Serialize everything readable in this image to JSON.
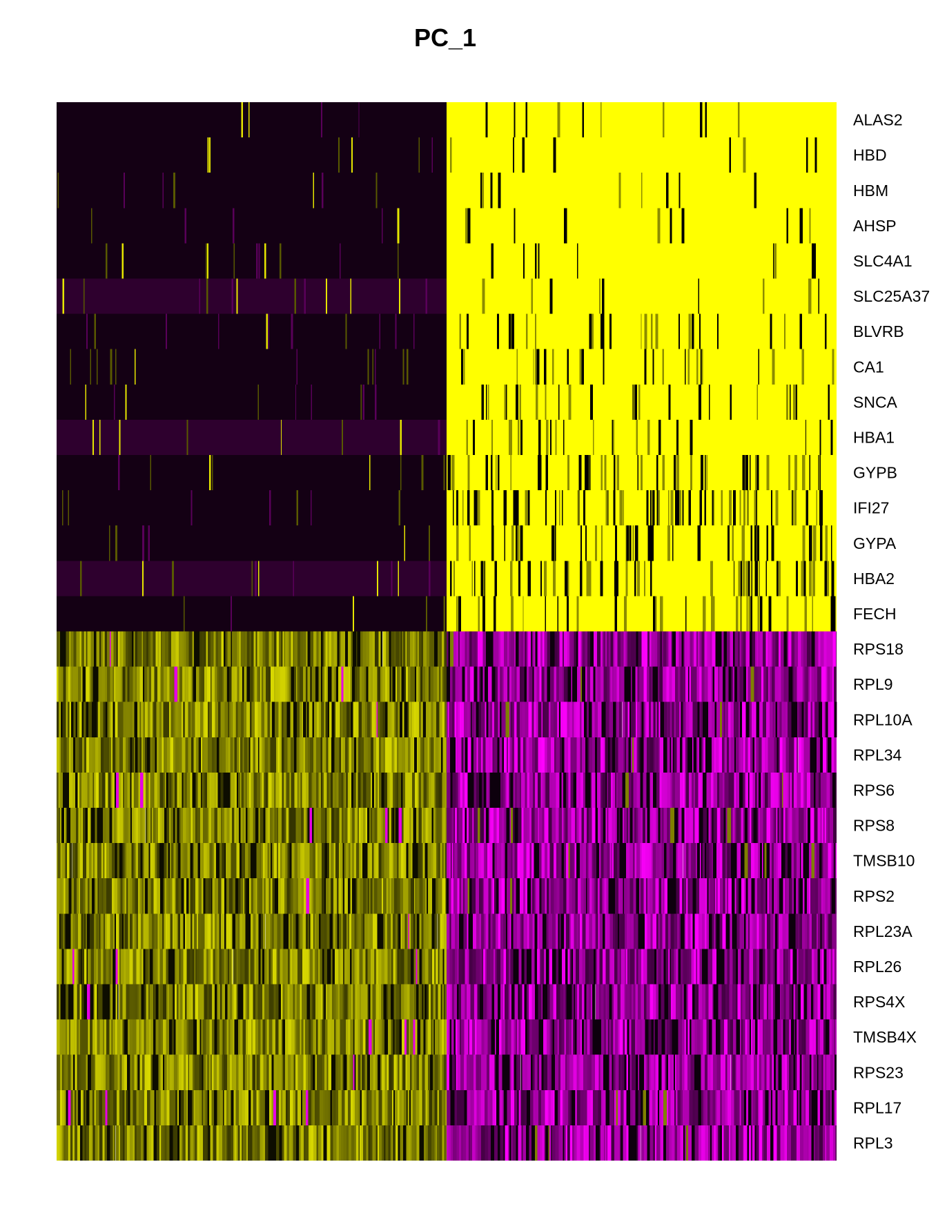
{
  "chart_data": {
    "type": "heatmap",
    "title": "PC_1",
    "xlabel": "",
    "ylabel": "",
    "rows": [
      "ALAS2",
      "HBD",
      "HBM",
      "AHSP",
      "SLC4A1",
      "SLC25A37",
      "BLVRB",
      "CA1",
      "SNCA",
      "HBA1",
      "GYPB",
      "IFI27",
      "GYPA",
      "HBA2",
      "FECH",
      "RPS18",
      "RPL9",
      "RPL10A",
      "RPL34",
      "RPS6",
      "RPS8",
      "TMSB10",
      "RPS2",
      "RPL23A",
      "RPL26",
      "RPS4X",
      "TMSB4X",
      "RPS23",
      "RPL17",
      "RPL3"
    ],
    "column_groups": [
      {
        "side": "left",
        "fraction": 0.5
      },
      {
        "side": "right",
        "fraction": 0.5
      }
    ],
    "block_pattern": {
      "top_rows": {
        "left": "low",
        "right": "high"
      },
      "bottom_rows": {
        "left": "high",
        "right": "low"
      }
    },
    "colorscale": {
      "low": "#FF00FF",
      "mid": "#000000",
      "high": "#FFFF00"
    },
    "grid": false,
    "legend": "none"
  }
}
